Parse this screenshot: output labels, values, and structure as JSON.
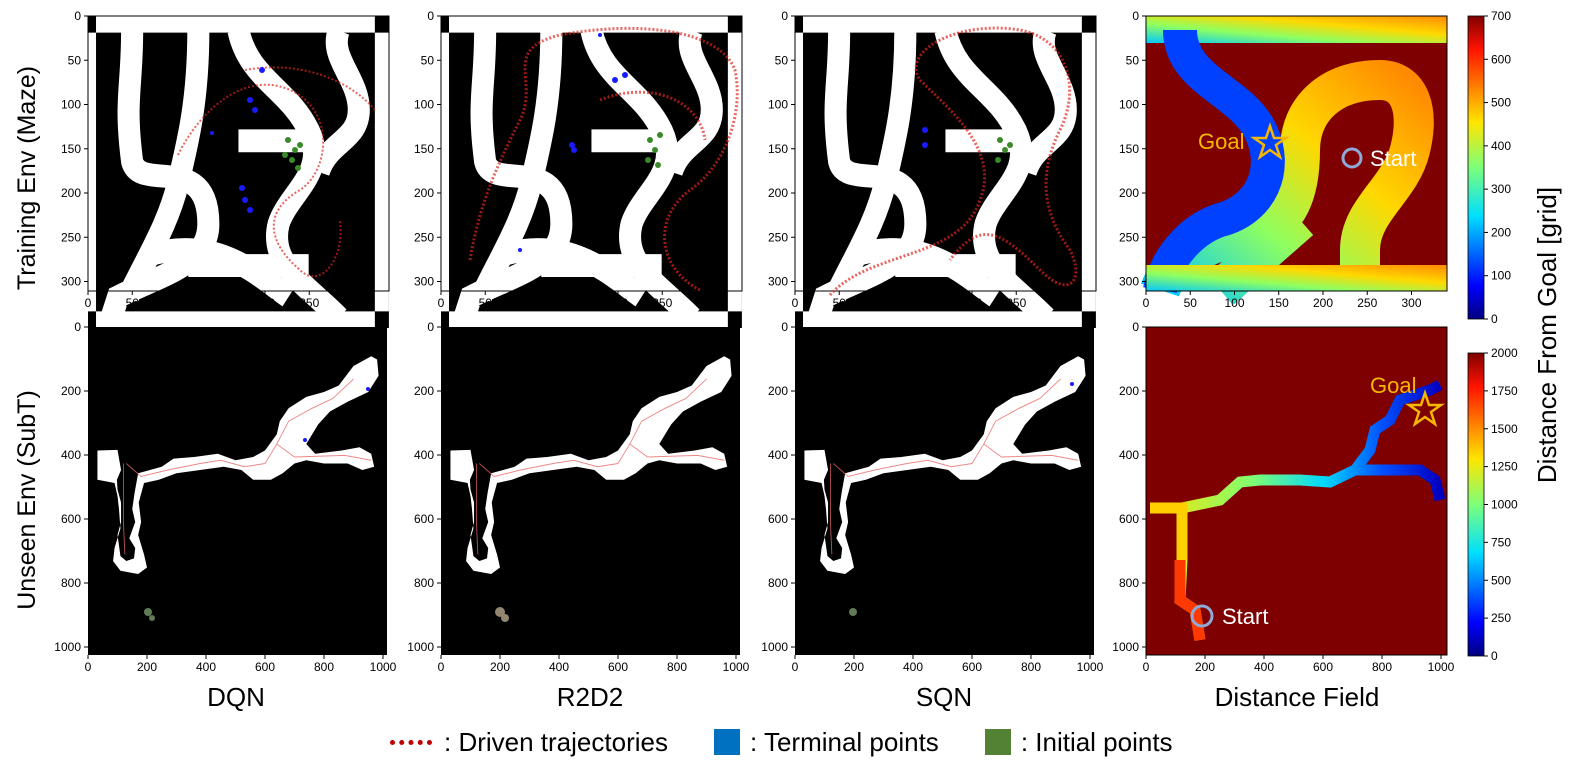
{
  "figure": {
    "row_labels": [
      "Training Env (Maze)",
      "Unseen Env (SubT)"
    ],
    "column_labels": [
      "DQN",
      "R2D2",
      "SQN",
      "Distance Field"
    ],
    "colorbar_label": "Distance From Goal [grid]"
  },
  "axes": {
    "maze_x_ticks": [
      "0",
      "50",
      "100",
      "150",
      "200",
      "250",
      "300"
    ],
    "maze_y_ticks": [
      "0",
      "50",
      "100",
      "150",
      "200",
      "250",
      "300"
    ],
    "subt_x_ticks": [
      "0",
      "200",
      "400",
      "600",
      "800",
      "1000"
    ],
    "subt_y_ticks": [
      "0",
      "200",
      "400",
      "600",
      "800",
      "1000"
    ]
  },
  "colorbars": {
    "maze_ticks": [
      "700",
      "600",
      "500",
      "400",
      "300",
      "200",
      "100",
      "0"
    ],
    "subt_ticks": [
      "2000",
      "1750",
      "1500",
      "1250",
      "1000",
      "750",
      "500",
      "250",
      "0"
    ]
  },
  "annotations": {
    "maze_goal": "Goal",
    "maze_start": "Start",
    "subt_goal": "Goal",
    "subt_start": "Start"
  },
  "legend": {
    "trajectories": ": Driven trajectories",
    "terminal": ": Terminal points",
    "initial": ": Initial points"
  },
  "colors": {
    "trajectory": "#e0241b",
    "terminal": "#1a1aff",
    "initial": "#3a8a2a",
    "legend_terminal": "#0070c0",
    "legend_initial": "#548235",
    "annotation_goal": "#f5b800",
    "annotation_start_marker": "#8fa9d8"
  }
}
